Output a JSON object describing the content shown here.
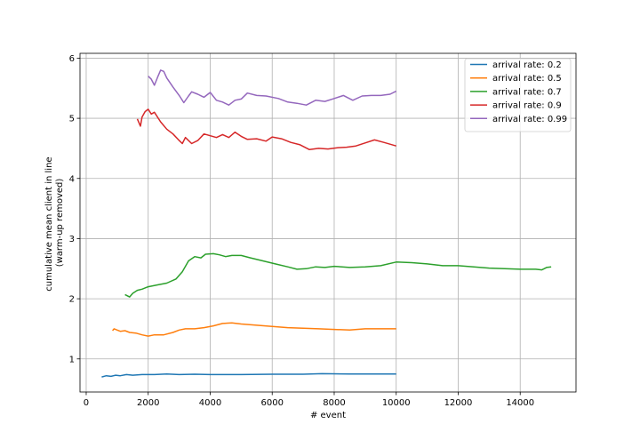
{
  "chart_data": {
    "type": "line",
    "title": "",
    "xlabel": "# event",
    "ylabel_lines": [
      "cumulative mean client in line",
      "(warm-up removed)"
    ],
    "xlim": [
      -200,
      15800
    ],
    "ylim": [
      0.45,
      6.08
    ],
    "xticks": [
      0,
      2000,
      4000,
      6000,
      8000,
      10000,
      12000,
      14000
    ],
    "yticks": [
      1,
      2,
      3,
      4,
      5,
      6
    ],
    "grid": true,
    "legend_position": "top-right",
    "series": [
      {
        "name": "arrival rate: 0.2",
        "color": "#1f77b4",
        "points": [
          [
            500,
            0.7
          ],
          [
            650,
            0.72
          ],
          [
            800,
            0.71
          ],
          [
            950,
            0.73
          ],
          [
            1100,
            0.72
          ],
          [
            1300,
            0.74
          ],
          [
            1500,
            0.73
          ],
          [
            1800,
            0.74
          ],
          [
            2200,
            0.74
          ],
          [
            2600,
            0.75
          ],
          [
            3000,
            0.74
          ],
          [
            3500,
            0.745
          ],
          [
            4000,
            0.74
          ],
          [
            5000,
            0.74
          ],
          [
            6000,
            0.745
          ],
          [
            7000,
            0.745
          ],
          [
            7600,
            0.755
          ],
          [
            8500,
            0.75
          ],
          [
            10000,
            0.75
          ]
        ]
      },
      {
        "name": "arrival rate: 0.5",
        "color": "#ff7f0e",
        "points": [
          [
            850,
            1.47
          ],
          [
            900,
            1.5
          ],
          [
            1000,
            1.48
          ],
          [
            1100,
            1.46
          ],
          [
            1250,
            1.47
          ],
          [
            1400,
            1.44
          ],
          [
            1600,
            1.43
          ],
          [
            1800,
            1.4
          ],
          [
            2000,
            1.38
          ],
          [
            2200,
            1.4
          ],
          [
            2500,
            1.4
          ],
          [
            2800,
            1.44
          ],
          [
            3000,
            1.48
          ],
          [
            3200,
            1.5
          ],
          [
            3500,
            1.5
          ],
          [
            3800,
            1.52
          ],
          [
            4100,
            1.55
          ],
          [
            4400,
            1.59
          ],
          [
            4700,
            1.6
          ],
          [
            5000,
            1.58
          ],
          [
            5500,
            1.56
          ],
          [
            6000,
            1.54
          ],
          [
            6500,
            1.52
          ],
          [
            7000,
            1.51
          ],
          [
            7500,
            1.5
          ],
          [
            8000,
            1.49
          ],
          [
            8500,
            1.48
          ],
          [
            9000,
            1.5
          ],
          [
            9500,
            1.5
          ],
          [
            10000,
            1.5
          ]
        ]
      },
      {
        "name": "arrival rate: 0.7",
        "color": "#2ca02c",
        "points": [
          [
            1250,
            2.07
          ],
          [
            1400,
            2.03
          ],
          [
            1500,
            2.09
          ],
          [
            1650,
            2.14
          ],
          [
            1800,
            2.16
          ],
          [
            2000,
            2.2
          ],
          [
            2300,
            2.23
          ],
          [
            2600,
            2.26
          ],
          [
            2900,
            2.33
          ],
          [
            3100,
            2.45
          ],
          [
            3300,
            2.63
          ],
          [
            3500,
            2.7
          ],
          [
            3700,
            2.68
          ],
          [
            3850,
            2.74
          ],
          [
            4100,
            2.75
          ],
          [
            4300,
            2.73
          ],
          [
            4500,
            2.7
          ],
          [
            4700,
            2.72
          ],
          [
            5000,
            2.72
          ],
          [
            5300,
            2.68
          ],
          [
            5700,
            2.63
          ],
          [
            6100,
            2.58
          ],
          [
            6500,
            2.53
          ],
          [
            6800,
            2.49
          ],
          [
            7100,
            2.5
          ],
          [
            7400,
            2.53
          ],
          [
            7700,
            2.52
          ],
          [
            8000,
            2.54
          ],
          [
            8500,
            2.52
          ],
          [
            9000,
            2.53
          ],
          [
            9500,
            2.55
          ],
          [
            10000,
            2.61
          ],
          [
            10500,
            2.6
          ],
          [
            11000,
            2.58
          ],
          [
            11500,
            2.55
          ],
          [
            12000,
            2.55
          ],
          [
            12500,
            2.53
          ],
          [
            13000,
            2.51
          ],
          [
            13500,
            2.5
          ],
          [
            14000,
            2.49
          ],
          [
            14500,
            2.49
          ],
          [
            14700,
            2.48
          ],
          [
            14850,
            2.52
          ],
          [
            15000,
            2.53
          ]
        ]
      },
      {
        "name": "arrival rate: 0.9",
        "color": "#d62728",
        "points": [
          [
            1650,
            4.99
          ],
          [
            1750,
            4.87
          ],
          [
            1800,
            5.02
          ],
          [
            1900,
            5.11
          ],
          [
            2000,
            5.15
          ],
          [
            2100,
            5.07
          ],
          [
            2200,
            5.1
          ],
          [
            2400,
            4.94
          ],
          [
            2600,
            4.82
          ],
          [
            2800,
            4.74
          ],
          [
            3000,
            4.63
          ],
          [
            3100,
            4.58
          ],
          [
            3200,
            4.68
          ],
          [
            3400,
            4.58
          ],
          [
            3600,
            4.63
          ],
          [
            3800,
            4.74
          ],
          [
            4000,
            4.71
          ],
          [
            4200,
            4.68
          ],
          [
            4400,
            4.73
          ],
          [
            4600,
            4.68
          ],
          [
            4800,
            4.77
          ],
          [
            5000,
            4.7
          ],
          [
            5200,
            4.65
          ],
          [
            5500,
            4.66
          ],
          [
            5800,
            4.62
          ],
          [
            6000,
            4.69
          ],
          [
            6300,
            4.66
          ],
          [
            6600,
            4.6
          ],
          [
            6900,
            4.56
          ],
          [
            7200,
            4.48
          ],
          [
            7500,
            4.5
          ],
          [
            7800,
            4.49
          ],
          [
            8100,
            4.51
          ],
          [
            8400,
            4.52
          ],
          [
            8700,
            4.54
          ],
          [
            9000,
            4.59
          ],
          [
            9300,
            4.64
          ],
          [
            9600,
            4.6
          ],
          [
            10000,
            4.54
          ]
        ]
      },
      {
        "name": "arrival rate: 0.99",
        "color": "#9467bd",
        "points": [
          [
            2000,
            5.7
          ],
          [
            2100,
            5.65
          ],
          [
            2200,
            5.55
          ],
          [
            2300,
            5.68
          ],
          [
            2400,
            5.8
          ],
          [
            2500,
            5.78
          ],
          [
            2600,
            5.67
          ],
          [
            2800,
            5.52
          ],
          [
            3000,
            5.38
          ],
          [
            3150,
            5.26
          ],
          [
            3300,
            5.37
          ],
          [
            3400,
            5.44
          ],
          [
            3600,
            5.4
          ],
          [
            3800,
            5.35
          ],
          [
            4000,
            5.43
          ],
          [
            4200,
            5.3
          ],
          [
            4400,
            5.27
          ],
          [
            4600,
            5.22
          ],
          [
            4800,
            5.3
          ],
          [
            5000,
            5.32
          ],
          [
            5200,
            5.42
          ],
          [
            5500,
            5.38
          ],
          [
            5800,
            5.37
          ],
          [
            6200,
            5.33
          ],
          [
            6500,
            5.27
          ],
          [
            6800,
            5.25
          ],
          [
            7100,
            5.22
          ],
          [
            7400,
            5.3
          ],
          [
            7700,
            5.28
          ],
          [
            8000,
            5.33
          ],
          [
            8300,
            5.38
          ],
          [
            8600,
            5.3
          ],
          [
            8900,
            5.37
          ],
          [
            9200,
            5.38
          ],
          [
            9500,
            5.38
          ],
          [
            9800,
            5.4
          ],
          [
            10000,
            5.45
          ]
        ]
      }
    ]
  }
}
